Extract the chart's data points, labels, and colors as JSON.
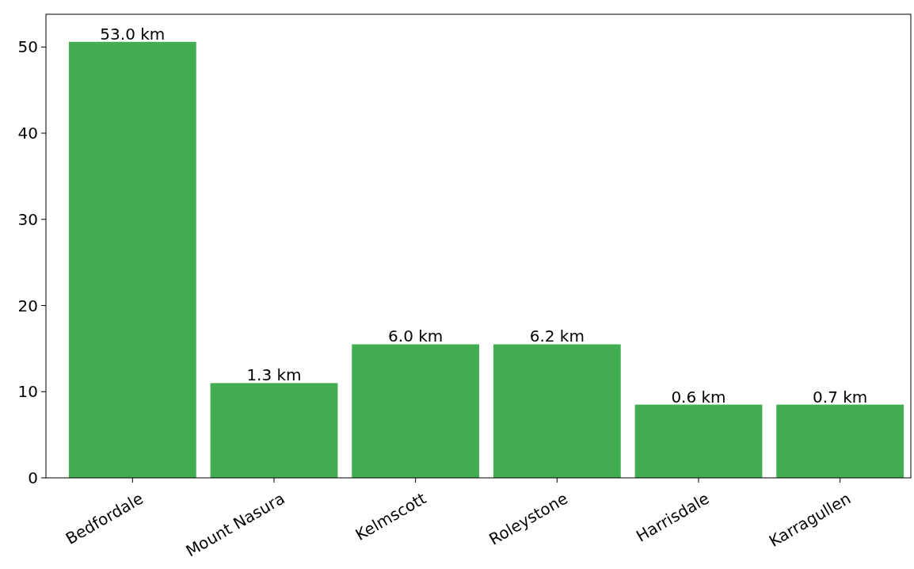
{
  "chart_data": {
    "type": "bar",
    "categories": [
      "Bedfordale",
      "Mount Nasura",
      "Kelmscott",
      "Roleystone",
      "Harrisdale",
      "Karragullen"
    ],
    "values": [
      50.6,
      11.0,
      15.5,
      15.5,
      8.5,
      8.5
    ],
    "annotations": [
      {
        "text": "53.0 km",
        "x": "Bedfordale",
        "y": 50.6
      },
      {
        "text": "1.3 km",
        "x": "Mount Nasura",
        "y": 11.0
      },
      {
        "text": "6.0 km",
        "x": "Kelmscott",
        "y": 15.5
      },
      {
        "text": "6.2 km",
        "x": "Roleystone",
        "y": 15.5
      },
      {
        "text": "0.6 km",
        "x": "Harrisdale",
        "y": 8.5
      },
      {
        "text": "0.7 km",
        "x": "Karragullen",
        "y": 8.5
      }
    ],
    "color": "#43ad52",
    "ylim": [
      0,
      53.8
    ],
    "yticks": [
      0,
      10,
      20,
      30,
      40,
      50
    ],
    "grid": false
  }
}
